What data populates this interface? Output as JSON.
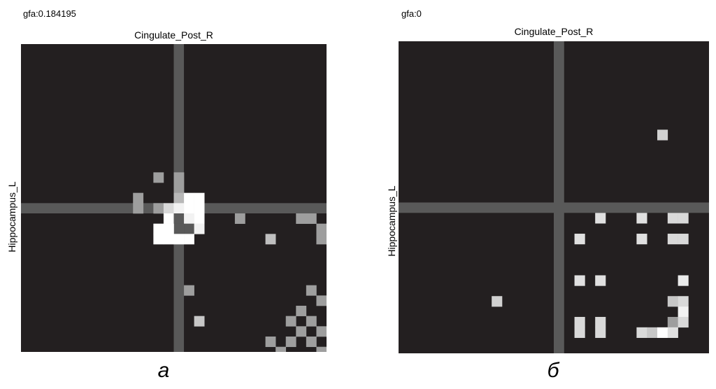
{
  "chart_data": [
    {
      "type": "heatmap",
      "header": "gfa:0.184195",
      "title": "Cingulate_Post_R",
      "ylabel": "Hippocampus_L",
      "caption": "а",
      "grid_size": 30,
      "separator": {
        "col": 15,
        "row": 16
      },
      "background_color": "#231f20",
      "separator_color": "#595959",
      "cells": [
        [
          13,
          13,
          0.62
        ],
        [
          15,
          13,
          0.62
        ],
        [
          15,
          14,
          0.62
        ],
        [
          11,
          15,
          0.62
        ],
        [
          15,
          15,
          0.72
        ],
        [
          16,
          15,
          1.0
        ],
        [
          17,
          15,
          1.0
        ],
        [
          11,
          16,
          0.62
        ],
        [
          13,
          16,
          0.62
        ],
        [
          14,
          16,
          0.85
        ],
        [
          15,
          16,
          0.95
        ],
        [
          16,
          16,
          1.0
        ],
        [
          17,
          16,
          1.0
        ],
        [
          14,
          17,
          1.0
        ],
        [
          15,
          17,
          0.35
        ],
        [
          16,
          17,
          0.95
        ],
        [
          17,
          17,
          1.0
        ],
        [
          21,
          17,
          0.62
        ],
        [
          27,
          17,
          0.62
        ],
        [
          28,
          17,
          0.62
        ],
        [
          13,
          18,
          1.0
        ],
        [
          14,
          18,
          1.0
        ],
        [
          16,
          18,
          0.35
        ],
        [
          17,
          18,
          0.95
        ],
        [
          29,
          18,
          0.62
        ],
        [
          13,
          19,
          1.0
        ],
        [
          14,
          19,
          1.0
        ],
        [
          15,
          19,
          1.0
        ],
        [
          16,
          19,
          1.0
        ],
        [
          24,
          19,
          0.75
        ],
        [
          29,
          19,
          0.62
        ],
        [
          16,
          24,
          0.62
        ],
        [
          28,
          24,
          0.62
        ],
        [
          29,
          25,
          0.62
        ],
        [
          27,
          26,
          0.62
        ],
        [
          17,
          27,
          0.78
        ],
        [
          26,
          27,
          0.62
        ],
        [
          28,
          27,
          0.62
        ],
        [
          27,
          28,
          0.62
        ],
        [
          29,
          28,
          0.62
        ],
        [
          24,
          29,
          0.62
        ],
        [
          26,
          29,
          0.62
        ],
        [
          28,
          29,
          0.62
        ],
        [
          25,
          30,
          0.62
        ],
        [
          29,
          30,
          0.62
        ],
        [
          16,
          31,
          0.62
        ],
        [
          22,
          31,
          0.62
        ],
        [
          24,
          31,
          0.62
        ],
        [
          26,
          31,
          0.62
        ],
        [
          28,
          31,
          0.62
        ],
        [
          17,
          32,
          0.62
        ],
        [
          23,
          32,
          0.62
        ],
        [
          25,
          32,
          0.62
        ],
        [
          27,
          32,
          0.62
        ]
      ]
    },
    {
      "type": "heatmap",
      "header": "gfa:0",
      "title": "Cingulate_Post_R",
      "ylabel": "Hippocampus_L",
      "caption": "б",
      "grid_size": 30,
      "separator": {
        "col": 15,
        "row": 16
      },
      "background_color": "#231f20",
      "separator_color": "#595959",
      "cells": [
        [
          25,
          9,
          0.82
        ],
        [
          19,
          17,
          0.88
        ],
        [
          23,
          17,
          0.88
        ],
        [
          26,
          17,
          0.85
        ],
        [
          27,
          17,
          0.85
        ],
        [
          17,
          19,
          0.88
        ],
        [
          23,
          19,
          0.88
        ],
        [
          26,
          19,
          0.85
        ],
        [
          27,
          19,
          0.85
        ],
        [
          17,
          23,
          0.88
        ],
        [
          19,
          23,
          0.88
        ],
        [
          27,
          23,
          0.92
        ],
        [
          9,
          25,
          0.82
        ],
        [
          26,
          25,
          0.78
        ],
        [
          27,
          25,
          0.85
        ],
        [
          27,
          26,
          0.95
        ],
        [
          17,
          27,
          0.85
        ],
        [
          19,
          27,
          0.85
        ],
        [
          26,
          27,
          0.62
        ],
        [
          27,
          27,
          0.85
        ],
        [
          17,
          28,
          0.85
        ],
        [
          19,
          28,
          0.85
        ],
        [
          23,
          28,
          0.85
        ],
        [
          24,
          28,
          0.78
        ],
        [
          25,
          28,
          1.0
        ],
        [
          26,
          28,
          0.88
        ]
      ]
    }
  ]
}
